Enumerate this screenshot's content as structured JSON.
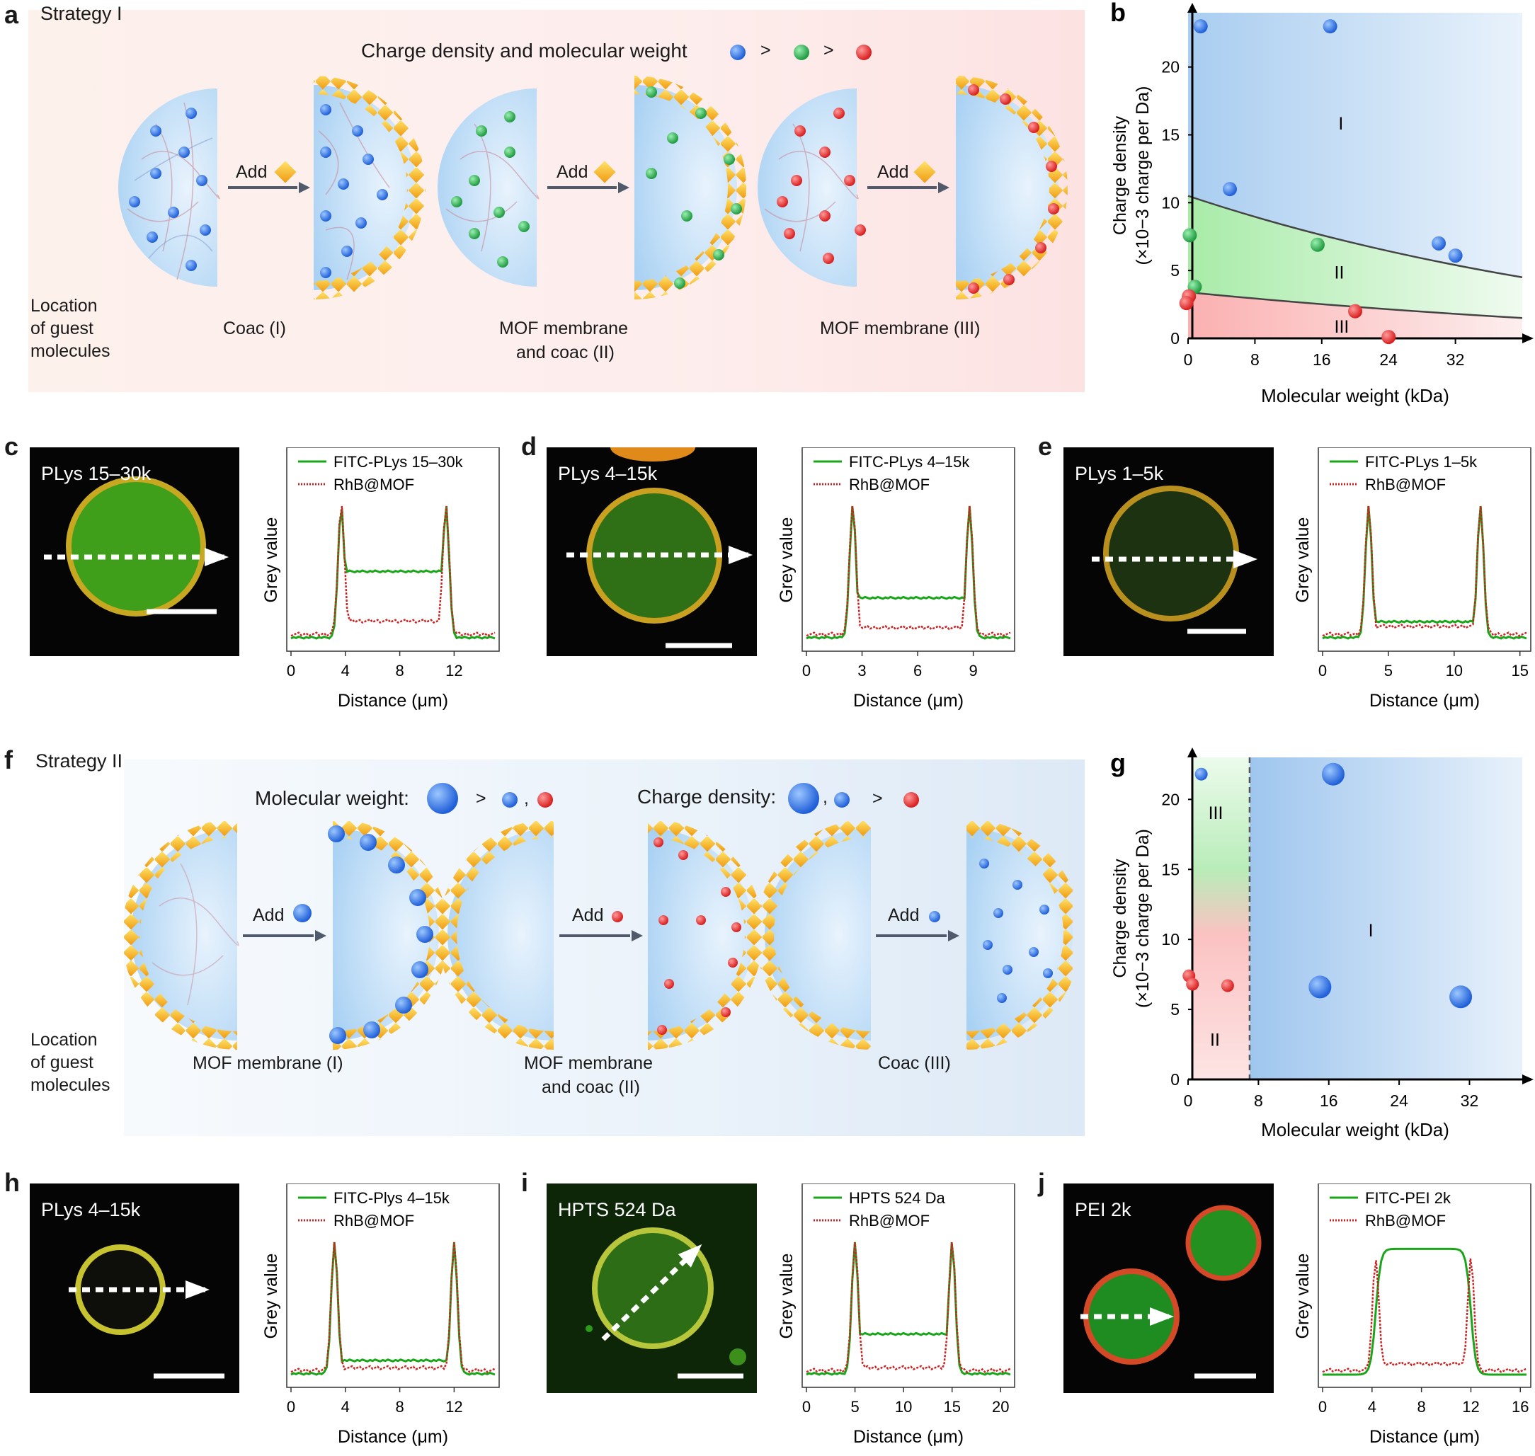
{
  "panel_a": {
    "label": "a",
    "strategy": "Strategy I",
    "legend_text": "Charge density and molecular weight",
    "legend_gt1": ">",
    "legend_gt2": ">",
    "add1": "Add",
    "add2": "Add",
    "add3": "Add",
    "location_line1": "Location",
    "location_line2": "of guest",
    "location_line3": "molecules",
    "cap1": "Coac (I)",
    "cap2_line1": "MOF membrane",
    "cap2_line2": "and coac (II)",
    "cap3": "MOF membrane (III)"
  },
  "panel_f": {
    "label": "f",
    "strategy": "Strategy II",
    "mw_text": "Molecular weight:",
    "mw_gt": ">",
    "mw_comma": ",",
    "cd_text": "Charge density:",
    "cd_comma": ",",
    "cd_gt": ">",
    "add1": "Add",
    "add2": "Add",
    "add3": "Add",
    "location_line1": "Location",
    "location_line2": "of guest",
    "location_line3": "molecules",
    "cap1": "MOF membrane (I)",
    "cap2_line1": "MOF membrane",
    "cap2_line2": "and coac (II)",
    "cap3": "Coac (III)"
  },
  "colors": {
    "blue": "#1f5fd8",
    "green": "#2ea34a",
    "red": "#d81e1e",
    "mof": "#f0a21b",
    "line_green": "#1aa51a",
    "line_red": "#cc2222"
  },
  "chart_data": [
    {
      "id": "b",
      "label": "b",
      "type": "scatter",
      "xlabel": "Molecular weight (kDa)",
      "ylabel_line1": "Charge density",
      "ylabel_line2": "(×10−3 charge per Da)",
      "xlim": [
        0,
        40
      ],
      "ylim": [
        0,
        24
      ],
      "xticks": [
        "0",
        "8",
        "16",
        "24",
        "32"
      ],
      "yticks": [
        "0",
        "5",
        "10",
        "15",
        "20"
      ],
      "regions": [
        "I",
        "II",
        "III"
      ],
      "boundary_upper": [
        [
          0,
          10.5
        ],
        [
          40,
          4.5
        ]
      ],
      "boundary_lower": [
        [
          0,
          3.4
        ],
        [
          40,
          1.5
        ]
      ],
      "series": [
        {
          "name": "blue",
          "points": [
            [
              1.5,
              23
            ],
            [
              17,
              23
            ],
            [
              5,
              11
            ],
            [
              30,
              7
            ],
            [
              32,
              6.1
            ]
          ]
        },
        {
          "name": "green",
          "points": [
            [
              0.2,
              7.6
            ],
            [
              15.5,
              6.9
            ],
            [
              0.8,
              3.8
            ]
          ]
        },
        {
          "name": "red",
          "points": [
            [
              0.1,
              3.1
            ],
            [
              -0.2,
              2.6
            ],
            [
              20,
              2
            ],
            [
              24,
              0.1
            ]
          ]
        }
      ]
    },
    {
      "id": "g",
      "label": "g",
      "type": "scatter",
      "xlabel": "Molecular weight (kDa)",
      "ylabel_line1": "Charge density",
      "ylabel_line2": "(×10−3 charge per Da)",
      "xlim": [
        0,
        38
      ],
      "ylim": [
        0,
        23
      ],
      "xticks": [
        "0",
        "8",
        "16",
        "24",
        "32"
      ],
      "yticks": [
        "0",
        "5",
        "10",
        "15",
        "20"
      ],
      "divider_x": 7,
      "regions": [
        "III",
        "I",
        "II"
      ],
      "series": [
        {
          "name": "blue",
          "points": [
            [
              1.5,
              21.8
            ],
            [
              16.5,
              21.8
            ],
            [
              15,
              6.6
            ],
            [
              31,
              5.9
            ]
          ]
        },
        {
          "name": "red",
          "points": [
            [
              0.1,
              7.4
            ],
            [
              0.5,
              6.8
            ],
            [
              4.5,
              6.7
            ]
          ]
        }
      ]
    },
    {
      "id": "c",
      "image_label": "PLys 15–30k",
      "label": "c",
      "type": "line",
      "legend": [
        "FITC-PLys 15–30k",
        "RhB@MOF"
      ],
      "xlabel": "Distance (μm)",
      "ylabel": "Grey value",
      "xlim": [
        0,
        15
      ],
      "xticks": [
        "0",
        "4",
        "8",
        "12"
      ],
      "peaks": [
        3.7,
        11.4
      ],
      "green_plateau": 0.5,
      "red_plateau": 0.1
    },
    {
      "id": "d",
      "image_label": "PLys 4–15k",
      "label": "d",
      "type": "line",
      "legend": [
        "FITC-PLys 4–15k",
        "RhB@MOF"
      ],
      "xlabel": "Distance (μm)",
      "ylabel": "Grey value",
      "xlim": [
        0,
        11
      ],
      "xticks": [
        "0",
        "3",
        "6",
        "9"
      ],
      "peaks": [
        2.5,
        8.8
      ],
      "green_plateau": 0.3,
      "red_plateau": 0.05
    },
    {
      "id": "e",
      "image_label": "PLys 1–5k",
      "label": "e",
      "type": "line",
      "legend": [
        "FITC-PLys 1–5k",
        "RhB@MOF"
      ],
      "xlabel": "Distance (μm)",
      "ylabel": "Grey value",
      "xlim": [
        0,
        15.5
      ],
      "xticks": [
        "0",
        "5",
        "10",
        "15"
      ],
      "peaks": [
        3.5,
        12
      ],
      "green_plateau": 0.12,
      "red_plateau": 0.06
    },
    {
      "id": "h",
      "image_label": "PLys 4–15k",
      "label": "h",
      "type": "line",
      "legend": [
        "FITC-Plys 4–15k",
        "RhB@MOF"
      ],
      "xlabel": "Distance (μm)",
      "ylabel": "Grey value",
      "xlim": [
        0,
        15
      ],
      "xticks": [
        "0",
        "4",
        "8",
        "12"
      ],
      "peaks": [
        3.2,
        12
      ],
      "green_plateau": 0.1,
      "red_plateau": 0.02
    },
    {
      "id": "i",
      "image_label": "HPTS 524 Da",
      "label": "i",
      "type": "line",
      "legend": [
        "HPTS 524 Da",
        "RhB@MOF"
      ],
      "xlabel": "Distance (μm)",
      "ylabel": "Grey value",
      "xlim": [
        0,
        21
      ],
      "xticks": [
        "0",
        "5",
        "10",
        "15",
        "20"
      ],
      "peaks": [
        5,
        15
      ],
      "green_plateau": 0.3,
      "red_plateau": 0.02
    },
    {
      "id": "j",
      "image_label": "PEI 2k",
      "label": "j",
      "type": "line",
      "legend": [
        "FITC-PEI 2k",
        "RhB@MOF"
      ],
      "xlabel": "Distance (μm)",
      "ylabel": "Grey value",
      "xlim": [
        0,
        16.5
      ],
      "xticks": [
        "0",
        "4",
        "8",
        "12",
        "16"
      ],
      "peaks": [
        4.3,
        12
      ],
      "green_plateau": 0.95,
      "red_plateau": 0.05,
      "green_mode": "plateau"
    }
  ]
}
